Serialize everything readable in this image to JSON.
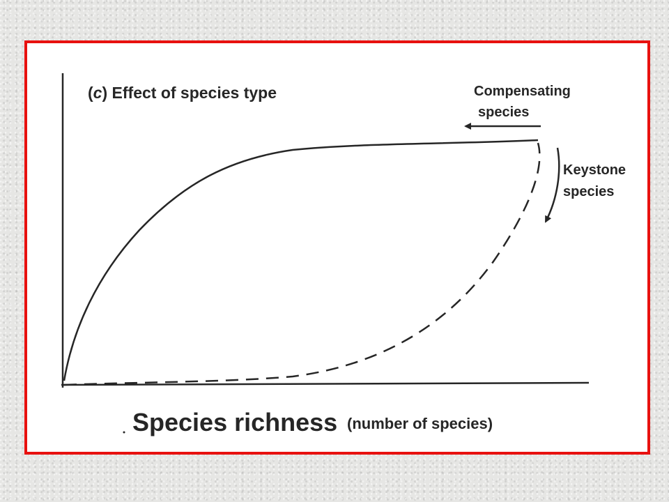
{
  "figure": {
    "panel_letter": "c",
    "title": "Effect of species type",
    "xlabel": "Species richness",
    "xlabel_note": "(number of species)",
    "annotations": {
      "compensating": [
        "Compensating",
        "species"
      ],
      "keystone": [
        "Keystone",
        "species"
      ]
    },
    "curves": [
      {
        "name": "compensating-curve",
        "style": "solid",
        "shape": "saturating"
      },
      {
        "name": "keystone-curve",
        "style": "dashed",
        "shape": "accelerating"
      }
    ]
  },
  "colors": {
    "frame": "#e8110f",
    "ink": "#262626",
    "background": "#e6e6e4"
  }
}
